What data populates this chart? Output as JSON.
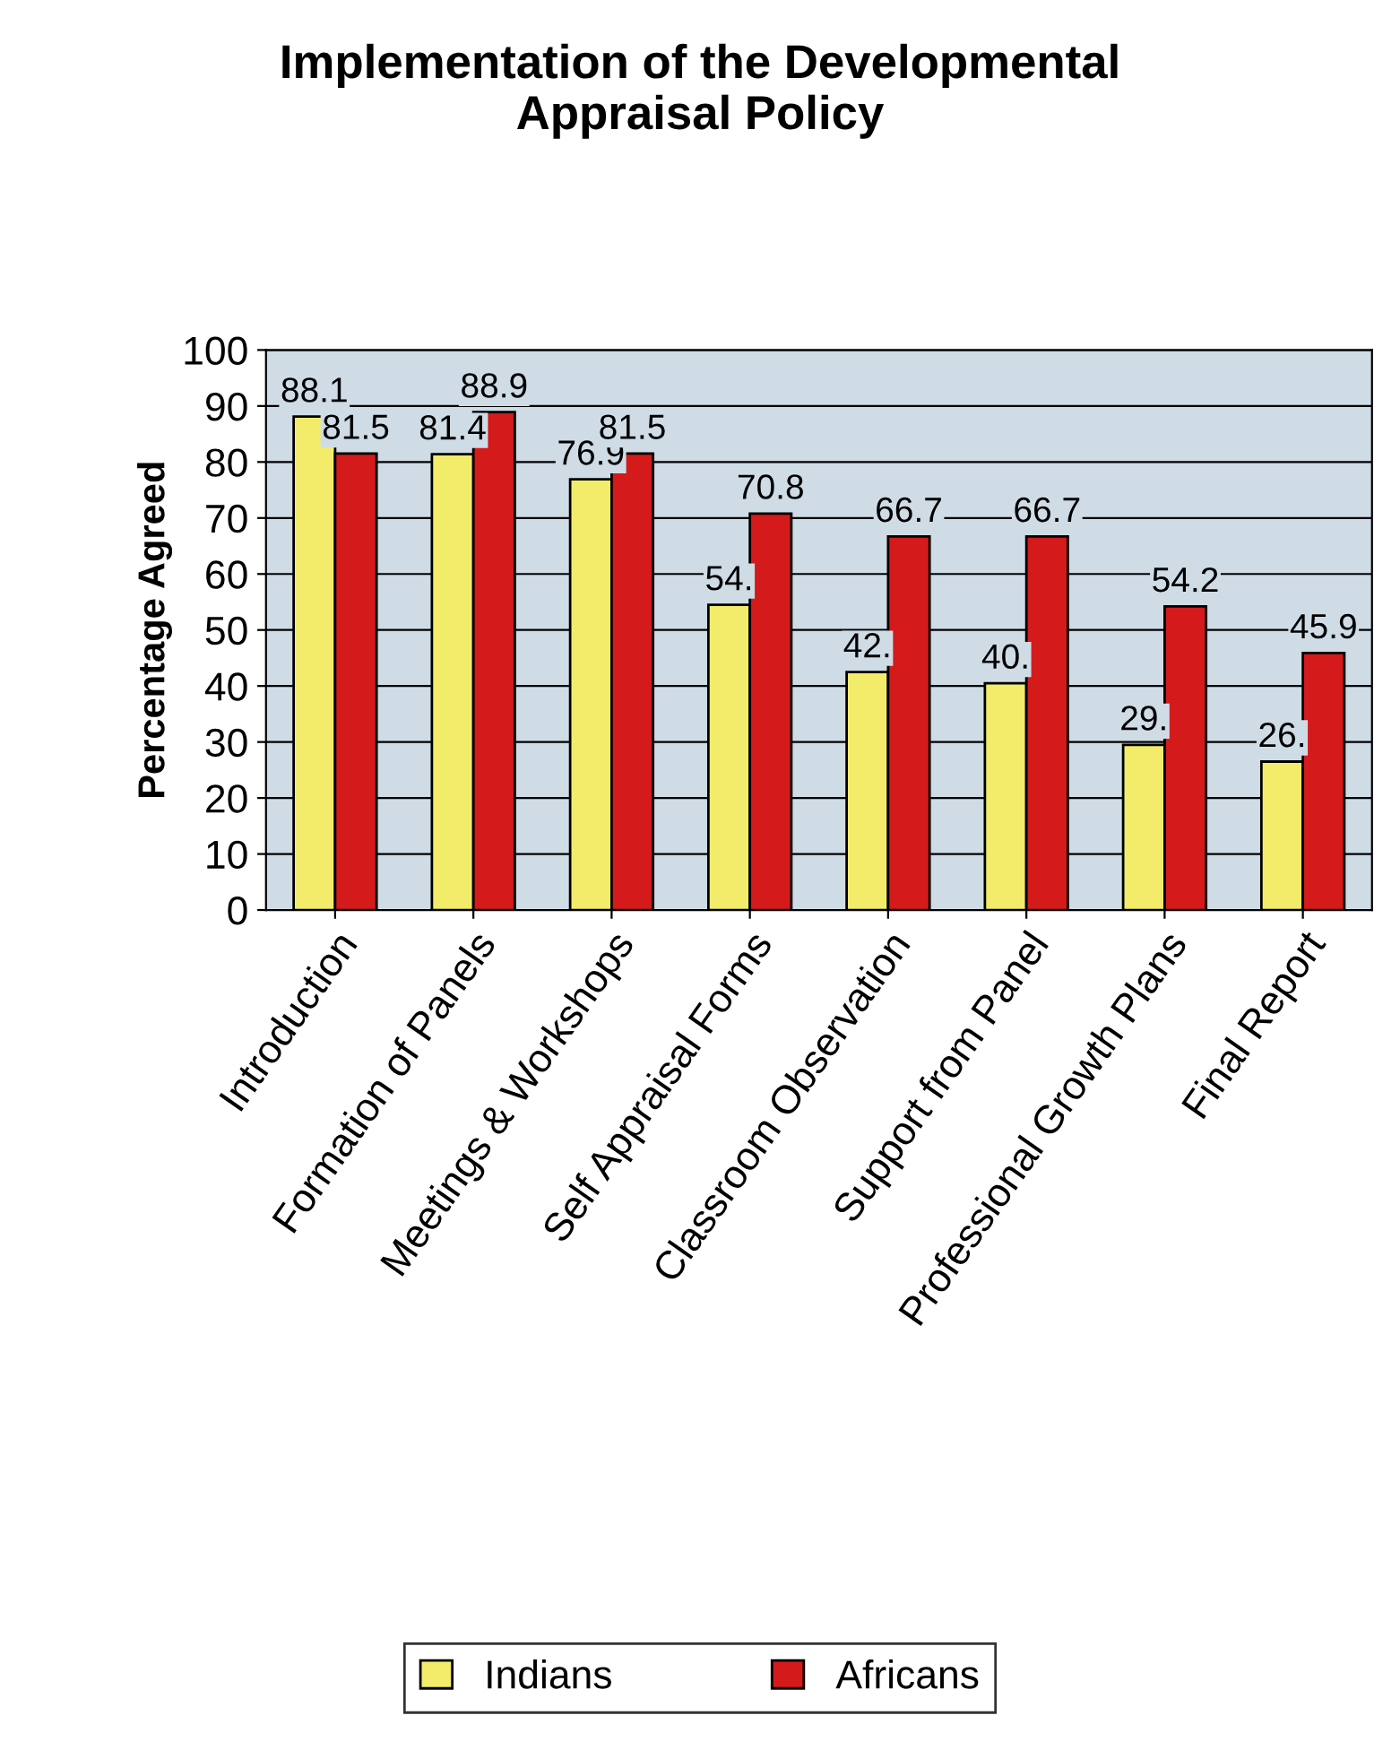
{
  "chart_data": {
    "type": "bar",
    "title": "Implementation of the Developmental\nAppraisal Policy",
    "ylabel": "Percentage Agreed",
    "categories": [
      "Introduction",
      "Formation of Panels",
      "Meetings & Workshops",
      "Self Appraisal Forms",
      "Classroom Observation",
      "Support from Panel",
      "Professional Growth Plans",
      "Final Report"
    ],
    "series": [
      {
        "name": "Indians",
        "color": "#f2ec6a",
        "values": [
          88.1,
          81.4,
          76.9,
          54.5,
          42.5,
          40.5,
          29.5,
          26.5
        ],
        "value_labels": [
          "88.1",
          "81.4",
          "76.9",
          "54.",
          "42.",
          "40.",
          "29.",
          "26."
        ]
      },
      {
        "name": "Africans",
        "color": "#d41a1a",
        "values": [
          81.5,
          88.9,
          81.5,
          70.8,
          66.7,
          66.7,
          54.2,
          45.9
        ],
        "value_labels": [
          "81.5",
          "88.9",
          "81.5",
          "70.8",
          "66.7",
          "66.7",
          "54.2",
          "45.9"
        ]
      }
    ],
    "ylim": [
      0,
      100
    ],
    "yticks": [
      0,
      10,
      20,
      30,
      40,
      50,
      60,
      70,
      80,
      90,
      100
    ],
    "grid": "y",
    "legend": "bottom"
  }
}
